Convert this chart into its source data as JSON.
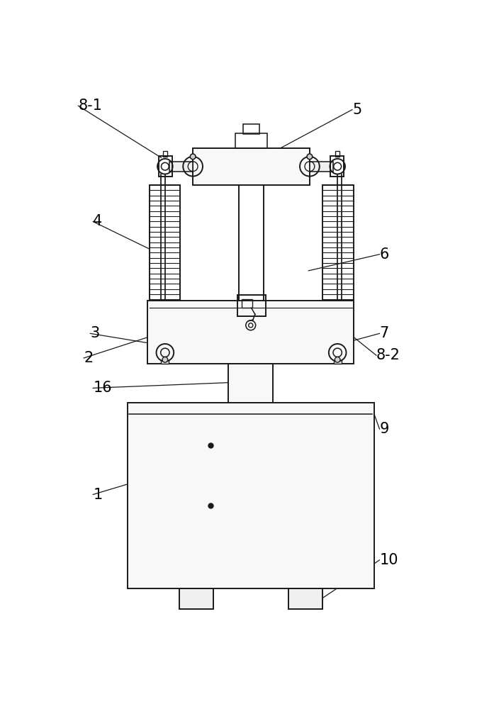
{
  "bg_color": "#ffffff",
  "line_color": "#1a1a1a",
  "line_width": 1.4,
  "fig_width": 6.97,
  "fig_height": 10.0,
  "label_fontsize": 15
}
